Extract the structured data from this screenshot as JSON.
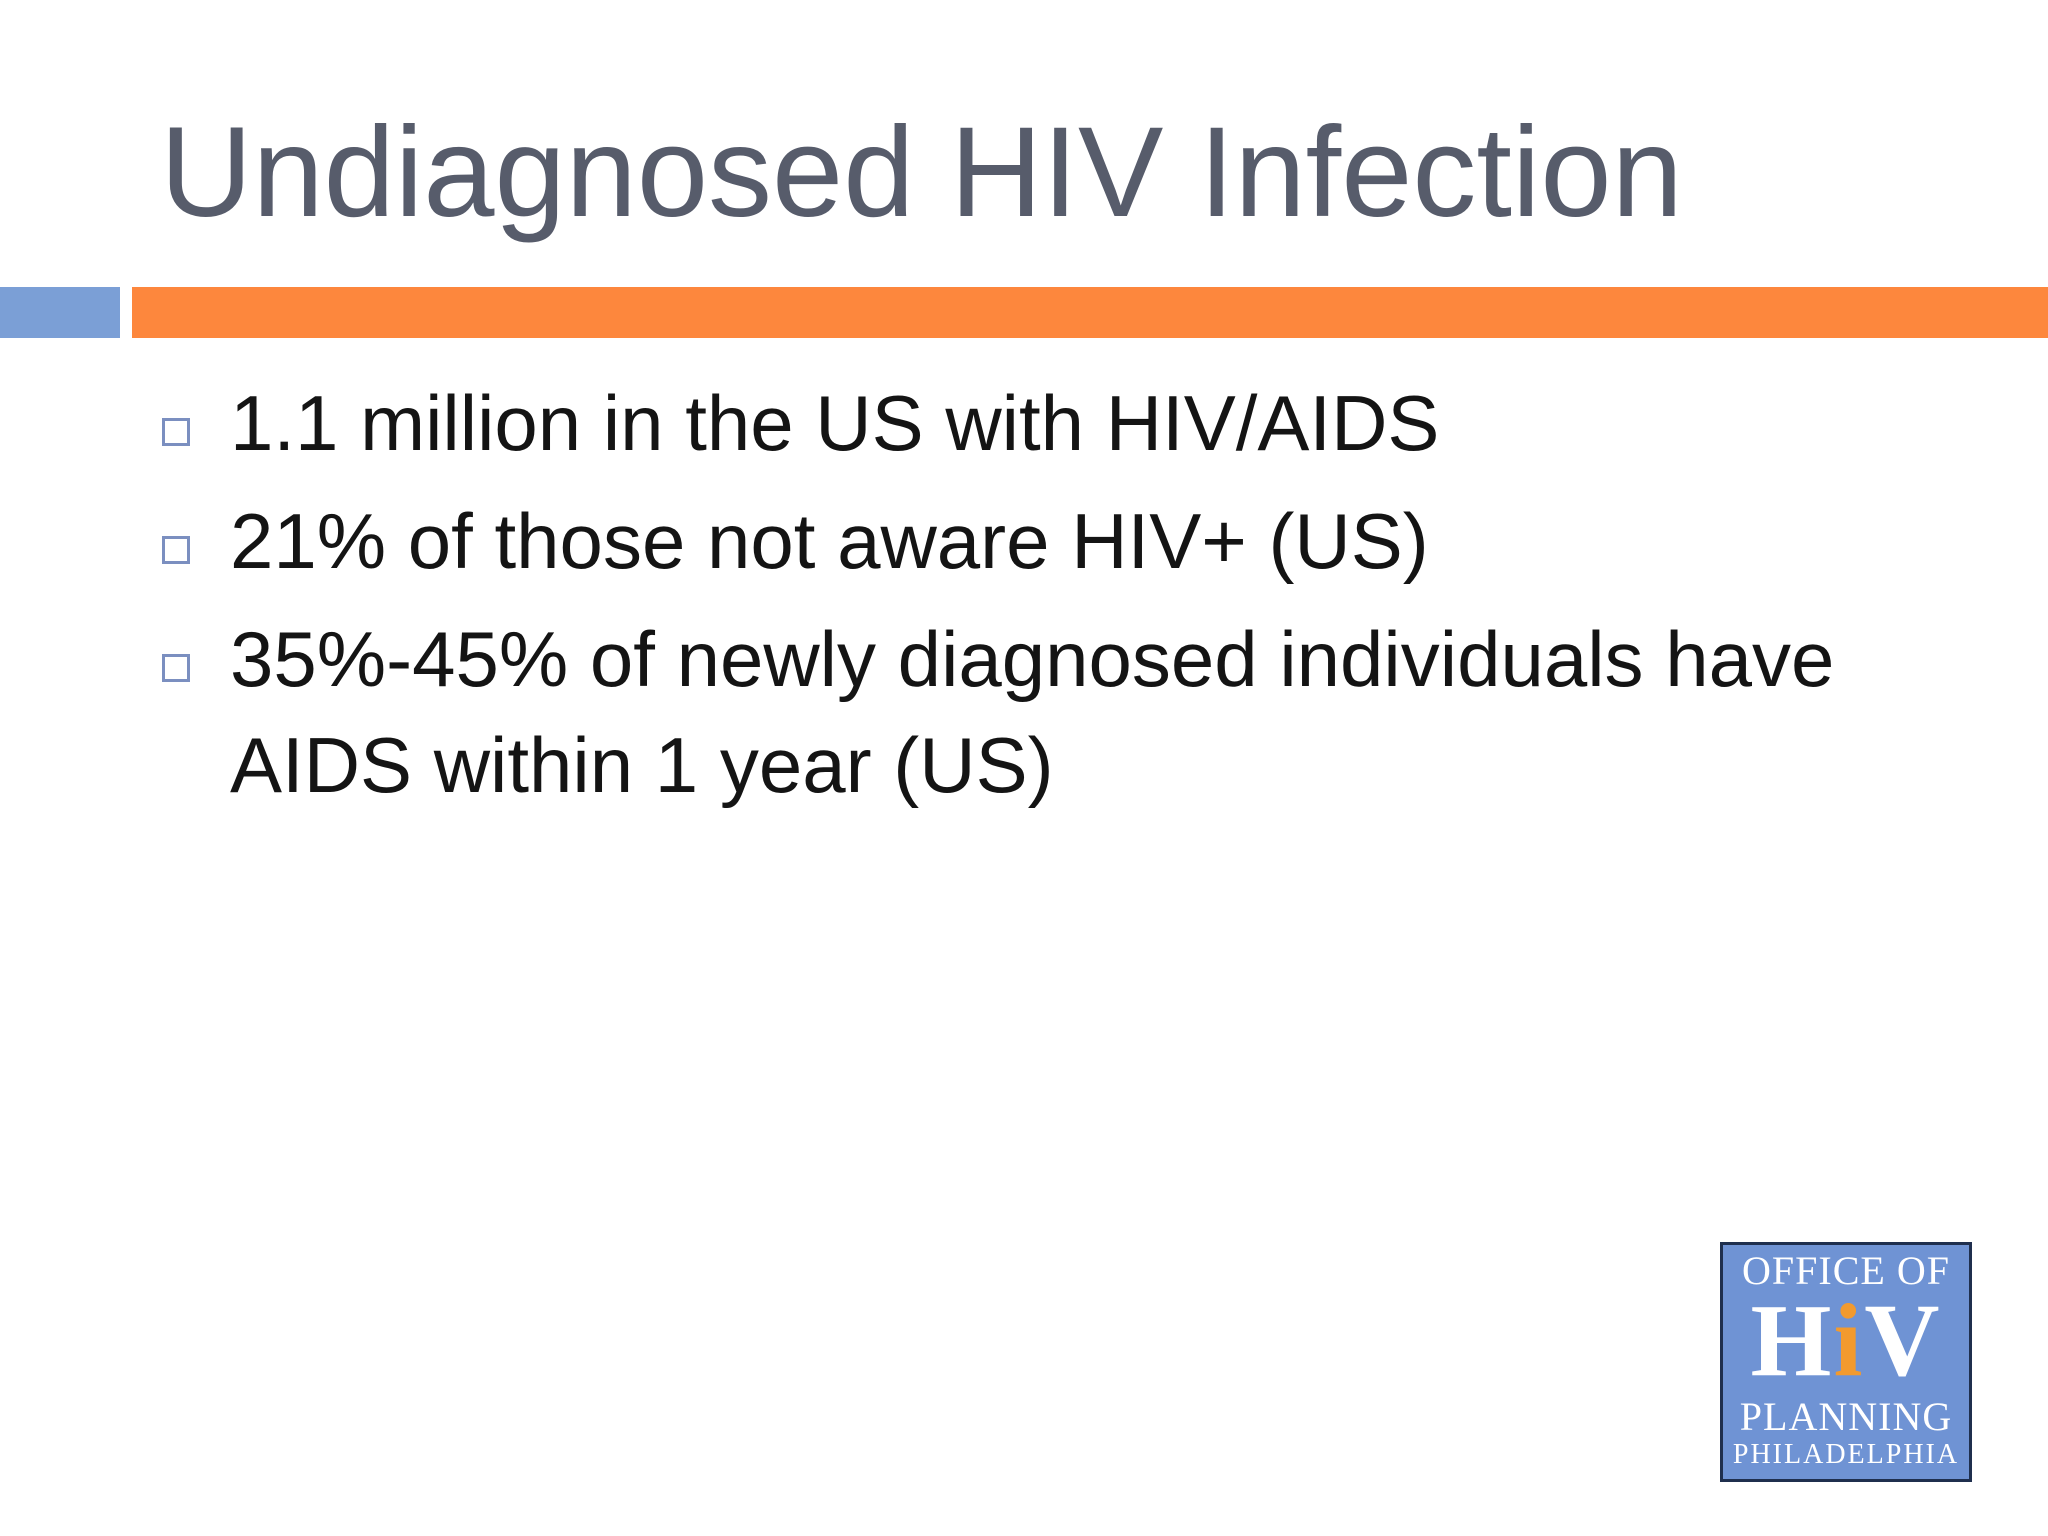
{
  "slide": {
    "title": "Undiagnosed HIV Infection",
    "bullets": [
      "1.1 million in the US with HIV/AIDS",
      "21% of those not aware HIV+ (US)",
      "35%-45% of newly diagnosed individuals have AIDS within 1 year (US)"
    ]
  },
  "logo": {
    "line1": "OFFICE OF",
    "hiv_h": "H",
    "hiv_i": "i",
    "hiv_v": "V",
    "line3": "PLANNING",
    "line4": "PHILADELPHIA"
  },
  "colors": {
    "title": "#575c6b",
    "rule_blue": "#7b9fd6",
    "rule_orange": "#fd873d",
    "logo_background": "#6f93d4",
    "logo_accent": "#f29a2e"
  }
}
